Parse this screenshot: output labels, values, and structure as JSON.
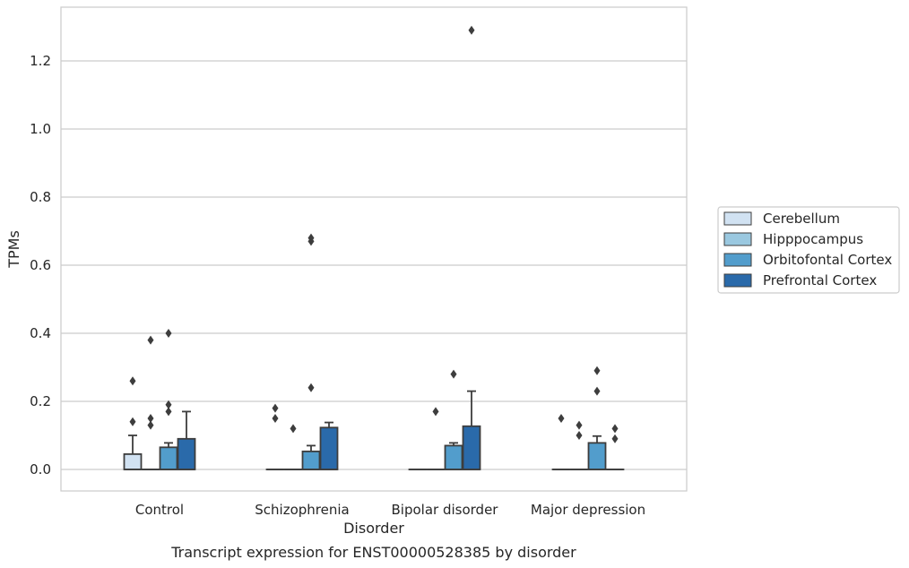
{
  "chart_data": {
    "type": "box",
    "title": "",
    "caption": "Transcript expression for ENST00000528385 by disorder",
    "xlabel": "Disorder",
    "ylabel": "TPMs",
    "ylim": [
      -0.065,
      1.36
    ],
    "yticks": [
      "0.0",
      "0.2",
      "0.4",
      "0.6",
      "0.8",
      "1.0",
      "1.2"
    ],
    "ytick_values": [
      0.0,
      0.2,
      0.4,
      0.6,
      0.8,
      1.0,
      1.2
    ],
    "grid": "horizontal",
    "legend_position": "right",
    "categories": [
      "Control",
      "Schizophrenia",
      "Bipolar disorder",
      "Major depression"
    ],
    "series": [
      {
        "name": "Cerebellum",
        "color": "#d1e2f2",
        "boxes": [
          {
            "q1": 0.0,
            "median": 0.0,
            "q3": 0.045,
            "whisker_low": 0.0,
            "whisker_high": 0.1,
            "outliers": [
              0.14,
              0.26
            ]
          },
          {
            "q1": 0.0,
            "median": 0.0,
            "q3": 0.0,
            "whisker_low": 0.0,
            "whisker_high": 0.0,
            "outliers": [
              0.15,
              0.18
            ]
          },
          {
            "q1": 0.0,
            "median": 0.0,
            "q3": 0.0,
            "whisker_low": 0.0,
            "whisker_high": 0.0,
            "outliers": []
          },
          {
            "q1": 0.0,
            "median": 0.0,
            "q3": 0.0,
            "whisker_low": 0.0,
            "whisker_high": 0.0,
            "outliers": [
              0.15
            ]
          }
        ]
      },
      {
        "name": "Hipppocampus",
        "color": "#9ac8e0",
        "boxes": [
          {
            "q1": 0.0,
            "median": 0.0,
            "q3": 0.0,
            "whisker_low": 0.0,
            "whisker_high": 0.0,
            "outliers": [
              0.13,
              0.15,
              0.38
            ]
          },
          {
            "q1": 0.0,
            "median": 0.0,
            "q3": 0.0,
            "whisker_low": 0.0,
            "whisker_high": 0.0,
            "outliers": [
              0.12
            ]
          },
          {
            "q1": 0.0,
            "median": 0.0,
            "q3": 0.0,
            "whisker_low": 0.0,
            "whisker_high": 0.0,
            "outliers": [
              0.17
            ]
          },
          {
            "q1": 0.0,
            "median": 0.0,
            "q3": 0.0,
            "whisker_low": 0.0,
            "whisker_high": 0.0,
            "outliers": [
              0.1,
              0.13
            ]
          }
        ]
      },
      {
        "name": "Orbitofontal Cortex",
        "color": "#529dcc",
        "boxes": [
          {
            "q1": 0.0,
            "median": 0.0,
            "q3": 0.065,
            "whisker_low": 0.0,
            "whisker_high": 0.078,
            "outliers": [
              0.17,
              0.19,
              0.4
            ]
          },
          {
            "q1": 0.0,
            "median": 0.0,
            "q3": 0.053,
            "whisker_low": 0.0,
            "whisker_high": 0.07,
            "outliers": [
              0.24,
              0.67,
              0.68
            ]
          },
          {
            "q1": 0.0,
            "median": 0.0,
            "q3": 0.07,
            "whisker_low": 0.0,
            "whisker_high": 0.078,
            "outliers": [
              0.28
            ]
          },
          {
            "q1": 0.0,
            "median": 0.0,
            "q3": 0.078,
            "whisker_low": 0.0,
            "whisker_high": 0.098,
            "outliers": [
              0.23,
              0.29
            ]
          }
        ]
      },
      {
        "name": "Prefrontal Cortex",
        "color": "#2a6aaa",
        "boxes": [
          {
            "q1": 0.0,
            "median": 0.0,
            "q3": 0.09,
            "whisker_low": 0.0,
            "whisker_high": 0.17,
            "outliers": []
          },
          {
            "q1": 0.0,
            "median": 0.0,
            "q3": 0.123,
            "whisker_low": 0.0,
            "whisker_high": 0.138,
            "outliers": []
          },
          {
            "q1": 0.0,
            "median": 0.0,
            "q3": 0.127,
            "whisker_low": 0.0,
            "whisker_high": 0.23,
            "outliers": [
              1.29
            ]
          },
          {
            "q1": 0.0,
            "median": 0.0,
            "q3": 0.0,
            "whisker_low": 0.0,
            "whisker_high": 0.0,
            "outliers": [
              0.09,
              0.12
            ]
          }
        ]
      }
    ]
  }
}
